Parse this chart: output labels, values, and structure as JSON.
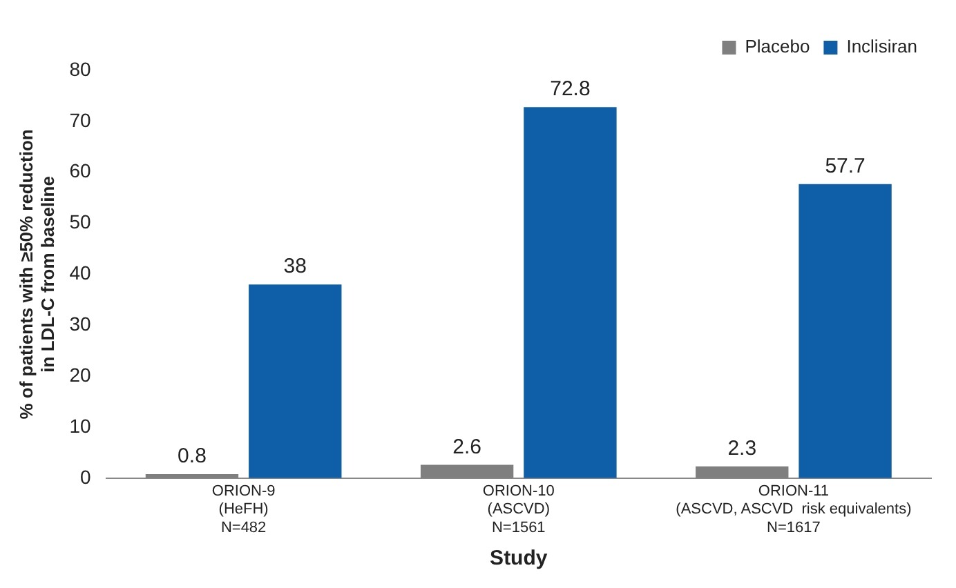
{
  "chart_data": {
    "type": "bar",
    "xlabel": "Study",
    "ylabel": "% of patients with ≥50% reduction\nin LDL-C from baseline",
    "categories": [
      "ORION-9\n(HeFH)\nN=482",
      "ORION-10\n(ASCVD)\nN=1561",
      "ORION-11\n(ASCVD, ASCVD  risk equivalents)\nN=1617"
    ],
    "series": [
      {
        "name": "Placebo",
        "color": "#7f7f7f",
        "values": [
          0.8,
          2.6,
          2.3
        ]
      },
      {
        "name": "Inclisiran",
        "color": "#0f5fa8",
        "values": [
          38,
          72.8,
          57.7
        ]
      }
    ],
    "ylim": [
      0,
      80
    ],
    "yticks": [
      0,
      10,
      20,
      30,
      40,
      50,
      60,
      70,
      80
    ],
    "grid": false,
    "legend": "top right",
    "data_labels": true
  }
}
